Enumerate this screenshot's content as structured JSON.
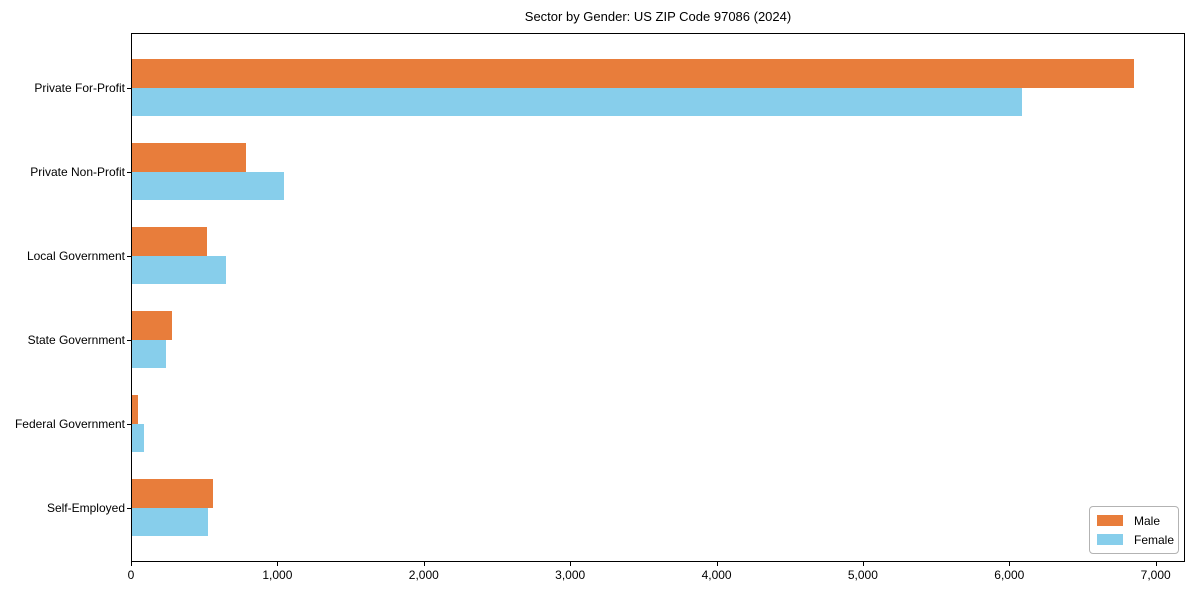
{
  "title": "Sector by Gender: US ZIP Code 97086 (2024)",
  "chart_data": {
    "type": "bar",
    "orientation": "horizontal",
    "title": "Sector by Gender: US ZIP Code 97086 (2024)",
    "xlabel": "",
    "ylabel": "",
    "categories": [
      "Private For-Profit",
      "Private Non-Profit",
      "Local Government",
      "State Government",
      "Federal Government",
      "Self-Employed"
    ],
    "series": [
      {
        "name": "Male",
        "color": "#e87d3b",
        "values": [
          6860,
          780,
          510,
          275,
          40,
          555
        ]
      },
      {
        "name": "Female",
        "color": "#87ceeb",
        "values": [
          6090,
          1040,
          640,
          230,
          85,
          520
        ]
      }
    ],
    "xlim": [
      0,
      7200
    ],
    "x_ticks": [
      0,
      1000,
      2000,
      3000,
      4000,
      5000,
      6000,
      7000
    ],
    "x_tick_labels": [
      "0",
      "1,000",
      "2,000",
      "3,000",
      "4,000",
      "5,000",
      "6,000",
      "7,000"
    ],
    "grid": false,
    "legend": {
      "position": "lower right",
      "entries": [
        "Male",
        "Female"
      ]
    }
  }
}
